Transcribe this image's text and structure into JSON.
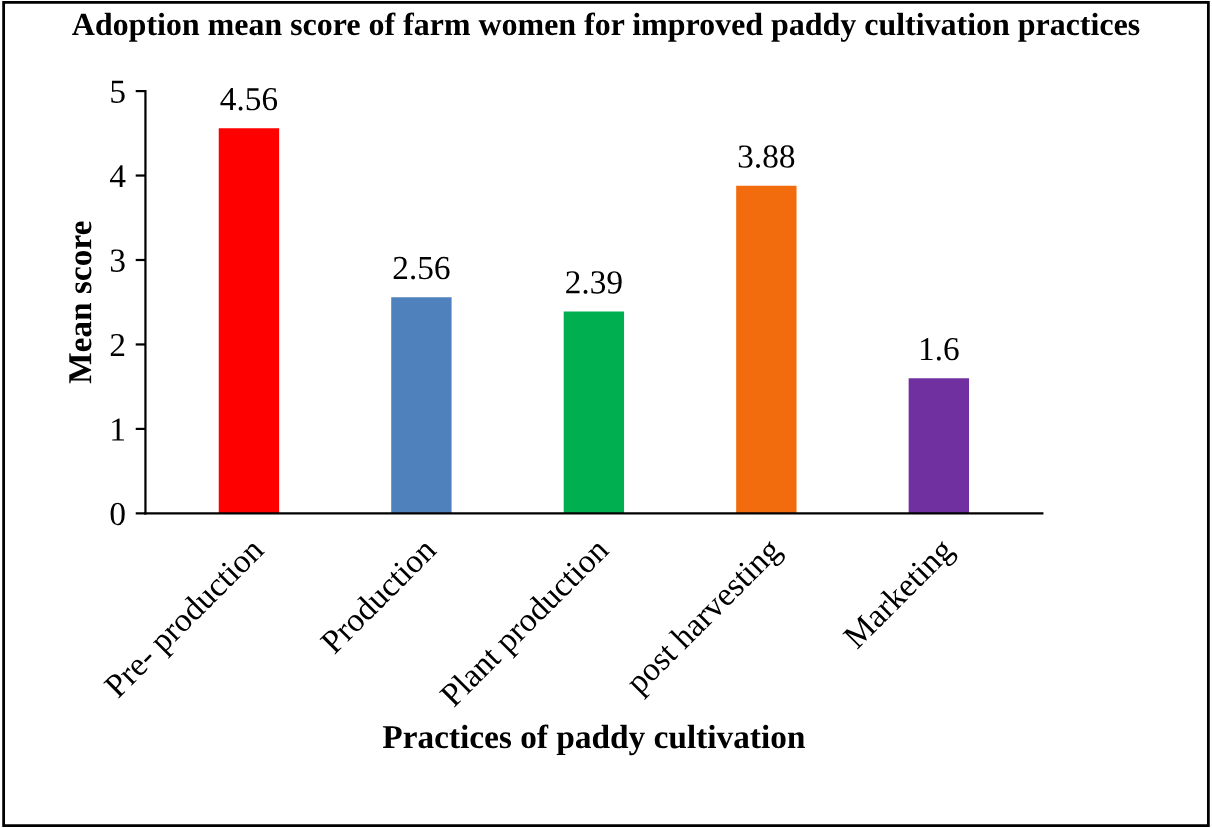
{
  "chart_data": {
    "type": "bar",
    "title": "Adoption mean score of farm women for improved paddy cultivation practices",
    "xlabel": "Practices of paddy cultivation",
    "ylabel": "Mean score",
    "categories": [
      "Pre- production",
      "Production",
      "Plant production",
      "post harvesting",
      "Marketing"
    ],
    "values": [
      4.56,
      2.56,
      2.39,
      3.88,
      1.6
    ],
    "colors": [
      "#ff0000",
      "#4f81bd",
      "#00b050",
      "#f26c0d",
      "#7030a0"
    ],
    "ylim": [
      0,
      5
    ],
    "yticks": [
      0,
      1,
      2,
      3,
      4,
      5
    ],
    "data_labels": true,
    "grid": false
  }
}
